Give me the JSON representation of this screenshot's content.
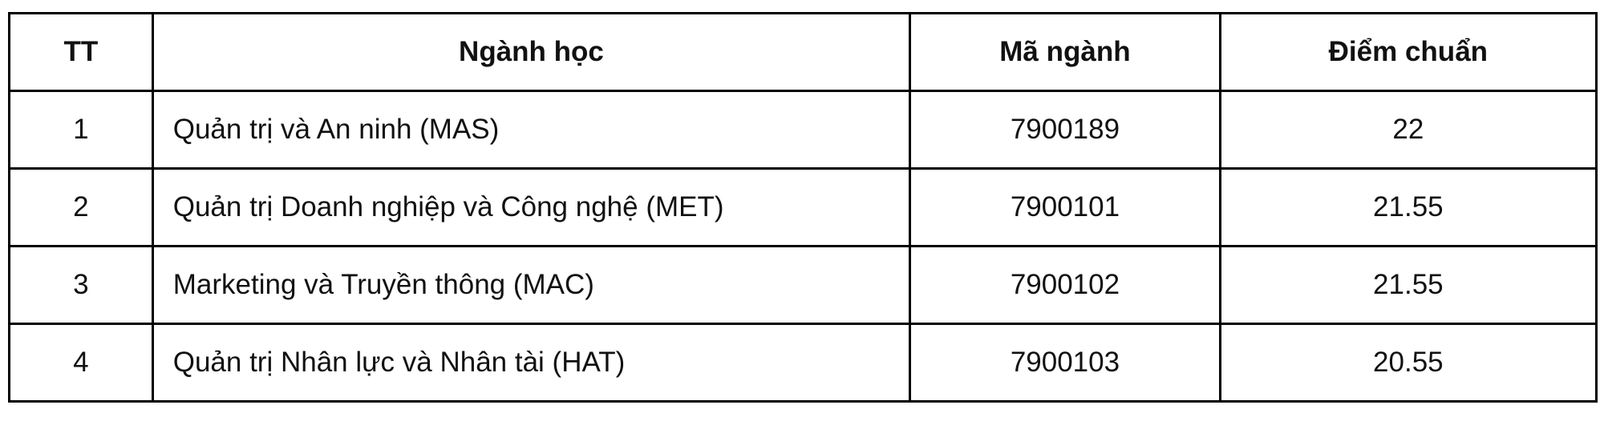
{
  "table": {
    "headers": [
      "TT",
      "Ngành học",
      "Mã ngành",
      "Điểm chuẩn"
    ],
    "rows": [
      {
        "tt": "1",
        "nganh": "Quản trị và An ninh (MAS)",
        "ma": "7900189",
        "diem": "22"
      },
      {
        "tt": "2",
        "nganh": "Quản trị Doanh nghiệp và Công nghệ (MET)",
        "ma": "7900101",
        "diem": "21.55"
      },
      {
        "tt": "3",
        "nganh": "Marketing và Truyền thông (MAC)",
        "ma": "7900102",
        "diem": "21.55"
      },
      {
        "tt": "4",
        "nganh": "Quản trị Nhân lực và Nhân tài (HAT)",
        "ma": "7900103",
        "diem": "20.55"
      }
    ]
  }
}
